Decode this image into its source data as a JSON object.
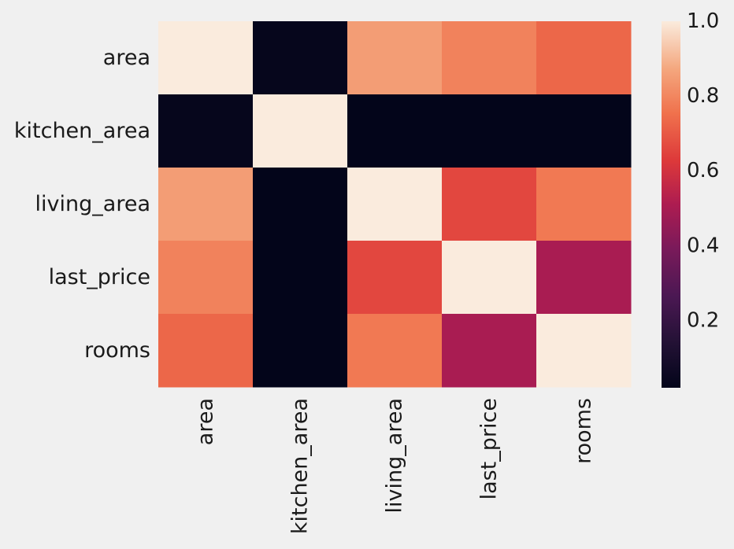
{
  "chart_data": {
    "type": "heatmap",
    "title": "",
    "xlabel": "",
    "ylabel": "",
    "rows": [
      "area",
      "kitchen_area",
      "living_area",
      "last_price",
      "rooms"
    ],
    "columns": [
      "area",
      "kitchen_area",
      "living_area",
      "last_price",
      "rooms"
    ],
    "values": [
      [
        1.0,
        0.03,
        0.85,
        0.79,
        0.73
      ],
      [
        0.03,
        1.0,
        0.02,
        0.02,
        0.02
      ],
      [
        0.85,
        0.02,
        1.0,
        0.66,
        0.77
      ],
      [
        0.79,
        0.02,
        0.66,
        1.0,
        0.5
      ],
      [
        0.73,
        0.02,
        0.77,
        0.5,
        1.0
      ]
    ],
    "colormap": "rocket",
    "colorbar": {
      "range": [
        0.02,
        1.0
      ],
      "ticks": [
        0.2,
        0.4,
        0.6,
        0.8,
        1.0
      ],
      "tick_labels": [
        "0.2",
        "0.4",
        "0.6",
        "0.8",
        "1.0"
      ]
    },
    "colors": {
      "background": "#f0f0f0",
      "text": "#1a1a1a"
    }
  }
}
